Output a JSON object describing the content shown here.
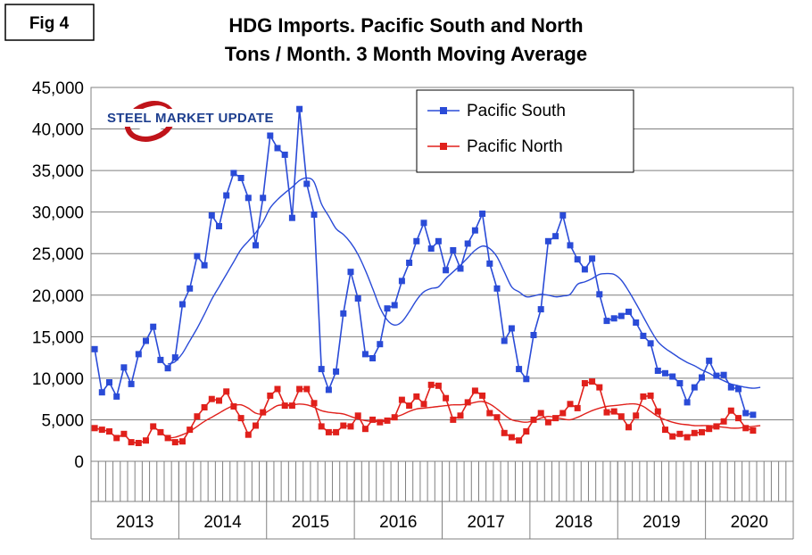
{
  "fig_label": "Fig 4",
  "logo_text": "STEEL MARKET UPDATE",
  "colors": {
    "south": "#2a4bd7",
    "north": "#e0201b",
    "grid": "#7f7f7f",
    "plot_bg": "#ffffff"
  },
  "chart_data": {
    "type": "line",
    "title": "HDG Imports. Pacific South and North",
    "subtitle": "Tons / Month. 3 Month Moving Average",
    "xlabel": "",
    "ylabel": "",
    "ylim": [
      0,
      45000
    ],
    "yticks": [
      "0",
      "5,000",
      "10,000",
      "15,000",
      "20,000",
      "25,000",
      "30,000",
      "35,000",
      "40,000",
      "45,000"
    ],
    "year_labels": [
      "2013",
      "2014",
      "2015",
      "2016",
      "2017",
      "2018",
      "2019",
      "2020"
    ],
    "x_start": "2013-01",
    "grid": true,
    "legend_position": "top-center",
    "series": [
      {
        "name": "Pacific South",
        "style": "line-with-square-markers",
        "values": [
          13500,
          8300,
          9500,
          7800,
          11300,
          9300,
          12900,
          14500,
          16200,
          12200,
          11200,
          12500,
          18900,
          20800,
          24700,
          23600,
          29600,
          28300,
          32000,
          34700,
          34100,
          31700,
          26000,
          31700,
          39200,
          37700,
          36900,
          29300,
          42400,
          33400,
          29700,
          11100,
          8600,
          10800,
          17800,
          22800,
          19600,
          12900,
          12400,
          14100,
          18400,
          18800,
          21700,
          23900,
          26500,
          28700,
          25600,
          26500,
          23000,
          25400,
          23200,
          26200,
          27800,
          29800,
          23800,
          20800,
          14500,
          16000,
          11100,
          9900,
          15200,
          18300,
          26500,
          27100,
          29600,
          26000,
          24300,
          23100,
          24400,
          20100,
          16900,
          17200,
          17500,
          18000,
          16700,
          15100,
          14200,
          10900,
          10600,
          10200,
          9400,
          7100,
          8900,
          10100,
          12100,
          10300,
          10400,
          8900,
          8700,
          5800,
          5600
        ]
      },
      {
        "name": "",
        "style": "smooth-line",
        "values": [
          null,
          null,
          null,
          null,
          null,
          null,
          null,
          null,
          null,
          null,
          11700,
          12000,
          13000,
          14500,
          16000,
          17700,
          19500,
          21000,
          22500,
          24000,
          25500,
          26500,
          27500,
          28800,
          30500,
          31500,
          32300,
          33000,
          33800,
          34100,
          33600,
          31000,
          29500,
          28000,
          27300,
          26300,
          24900,
          23000,
          20800,
          18500,
          17000,
          16400,
          16800,
          18000,
          19400,
          20400,
          20800,
          21000,
          22000,
          22800,
          23600,
          24500,
          25400,
          25900,
          25600,
          24600,
          22800,
          21000,
          20400,
          19800,
          19900,
          20100,
          20000,
          19800,
          19900,
          20100,
          21300,
          21600,
          22000,
          22500,
          22600,
          22500,
          21800,
          20500,
          19000,
          17400,
          15800,
          14400,
          13600,
          13000,
          12400,
          11900,
          11500,
          11000,
          10600,
          10100,
          9700,
          9300,
          9100,
          8900,
          8800,
          8900
        ]
      },
      {
        "name": "Pacific North",
        "style": "line-with-square-markers",
        "values": [
          4000,
          3800,
          3600,
          2800,
          3300,
          2300,
          2200,
          2500,
          4200,
          3500,
          2800,
          2300,
          2400,
          3800,
          5400,
          6500,
          7500,
          7300,
          8400,
          6600,
          5200,
          3200,
          4300,
          5900,
          7900,
          8700,
          6700,
          6700,
          8700,
          8700,
          7000,
          4200,
          3500,
          3500,
          4300,
          4200,
          5500,
          3900,
          5000,
          4700,
          4900,
          5300,
          7400,
          6700,
          7800,
          6900,
          9200,
          9100,
          7600,
          5000,
          5500,
          7100,
          8500,
          7900,
          5800,
          5300,
          3400,
          2900,
          2500,
          3600,
          5000,
          5800,
          4700,
          5200,
          5800,
          6900,
          6400,
          9400,
          9600,
          8900,
          5900,
          6000,
          5400,
          4100,
          5500,
          7800,
          7900,
          6000,
          3800,
          3000,
          3300,
          2900,
          3400,
          3500,
          3900,
          4200,
          4800,
          6100,
          5200,
          4000,
          3700
        ]
      },
      {
        "name": "",
        "style": "smooth-line",
        "values": [
          null,
          null,
          null,
          null,
          null,
          null,
          null,
          null,
          null,
          null,
          2800,
          2900,
          3200,
          3600,
          4200,
          4800,
          5300,
          5800,
          6300,
          6700,
          6800,
          6400,
          5800,
          5700,
          6200,
          6700,
          6800,
          6800,
          6900,
          6800,
          6500,
          6100,
          5900,
          5800,
          5700,
          5400,
          5100,
          4900,
          4800,
          4800,
          5000,
          5300,
          5600,
          6000,
          6300,
          6400,
          6500,
          6600,
          6700,
          6800,
          6800,
          6900,
          7100,
          7200,
          6900,
          6300,
          5600,
          5000,
          4800,
          4700,
          4900,
          5200,
          5400,
          5300,
          5100,
          5000,
          5300,
          5700,
          6100,
          6400,
          6600,
          6700,
          6800,
          6900,
          6900,
          6600,
          6000,
          5400,
          5000,
          4700,
          4500,
          4400,
          4300,
          4300,
          4300,
          4200,
          4100,
          4000,
          4000,
          4100,
          4200,
          4300
        ]
      }
    ]
  }
}
